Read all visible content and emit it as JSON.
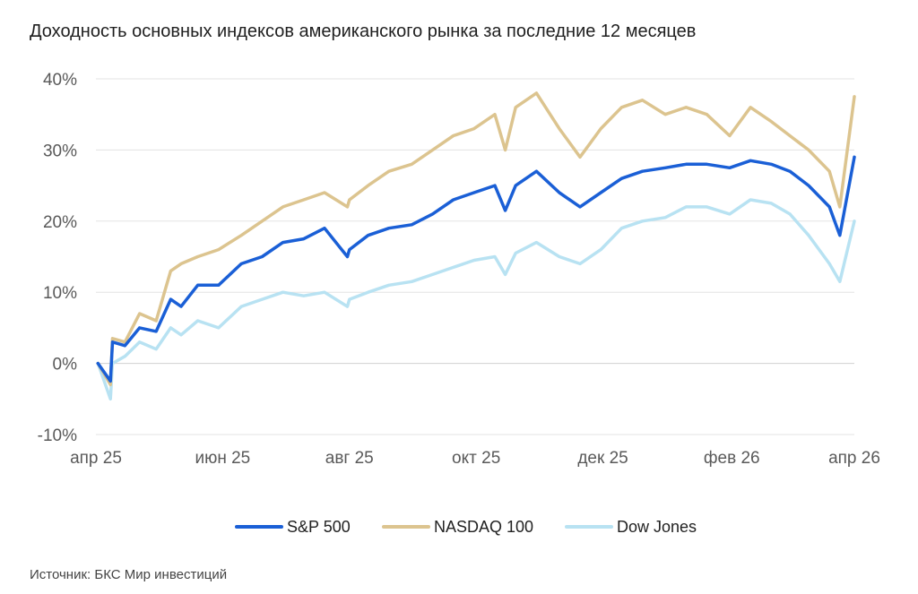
{
  "title": "Доходность основных индексов американского рынка за последние 12 месяцев",
  "source": "Источник: БКС Мир инвестиций",
  "chart_data": {
    "type": "line",
    "title": "Доходность основных индексов американского рынка за последние 12 месяцев",
    "xlabel": "",
    "ylabel": "",
    "x_ticks": [
      "апр 25",
      "июн 25",
      "авг 25",
      "окт 25",
      "дек 25",
      "фев 26",
      "апр 26"
    ],
    "y_ticks": [
      "-10%",
      "0%",
      "10%",
      "20%",
      "30%",
      "40%"
    ],
    "ylim": [
      -10,
      40
    ],
    "grid": "horizontal",
    "legend_position": "bottom",
    "series": [
      {
        "name": "S&P 500",
        "color": "#1a5fd6",
        "x": [
          "2025-04-02",
          "2025-04-08",
          "2025-04-09",
          "2025-04-15",
          "2025-04-22",
          "2025-04-30",
          "2025-05-07",
          "2025-05-12",
          "2025-05-20",
          "2025-05-30",
          "2025-06-10",
          "2025-06-20",
          "2025-06-30",
          "2025-07-10",
          "2025-07-20",
          "2025-07-31",
          "2025-08-01",
          "2025-08-10",
          "2025-08-20",
          "2025-08-31",
          "2025-09-10",
          "2025-09-20",
          "2025-09-30",
          "2025-10-10",
          "2025-10-15",
          "2025-10-20",
          "2025-10-30",
          "2025-11-10",
          "2025-11-20",
          "2025-11-30",
          "2025-12-10",
          "2025-12-20",
          "2025-12-31",
          "2026-01-10",
          "2026-01-20",
          "2026-01-31",
          "2026-02-10",
          "2026-02-20",
          "2026-03-01",
          "2026-03-10",
          "2026-03-20",
          "2026-03-25",
          "2026-04-01"
        ],
        "values": [
          0,
          -2.5,
          3,
          2.5,
          5,
          4.5,
          9,
          8,
          11,
          11,
          14,
          15,
          17,
          17.5,
          19,
          15,
          16,
          18,
          19,
          19.5,
          21,
          23,
          24,
          25,
          21.5,
          25,
          27,
          24,
          22,
          24,
          26,
          27,
          27.5,
          28,
          28,
          27.5,
          28.5,
          28,
          27,
          25,
          22,
          18,
          29
        ]
      },
      {
        "name": "NASDAQ 100",
        "color": "#dcc48f",
        "x": [
          "2025-04-02",
          "2025-04-08",
          "2025-04-09",
          "2025-04-15",
          "2025-04-22",
          "2025-04-30",
          "2025-05-07",
          "2025-05-12",
          "2025-05-20",
          "2025-05-30",
          "2025-06-10",
          "2025-06-20",
          "2025-06-30",
          "2025-07-10",
          "2025-07-20",
          "2025-07-31",
          "2025-08-01",
          "2025-08-10",
          "2025-08-20",
          "2025-08-31",
          "2025-09-10",
          "2025-09-20",
          "2025-09-30",
          "2025-10-10",
          "2025-10-15",
          "2025-10-20",
          "2025-10-30",
          "2025-11-10",
          "2025-11-20",
          "2025-11-30",
          "2025-12-10",
          "2025-12-20",
          "2025-12-31",
          "2026-01-10",
          "2026-01-20",
          "2026-01-31",
          "2026-02-10",
          "2026-02-20",
          "2026-03-01",
          "2026-03-10",
          "2026-03-20",
          "2026-03-25",
          "2026-04-01"
        ],
        "values": [
          0,
          -3,
          3.5,
          3,
          7,
          6,
          13,
          14,
          15,
          16,
          18,
          20,
          22,
          23,
          24,
          22,
          23,
          25,
          27,
          28,
          30,
          32,
          33,
          35,
          30,
          36,
          38,
          33,
          29,
          33,
          36,
          37,
          35,
          36,
          35,
          32,
          36,
          34,
          32,
          30,
          27,
          22,
          37.5
        ]
      },
      {
        "name": "Dow Jones",
        "color": "#b8e2f2",
        "x": [
          "2025-04-02",
          "2025-04-08",
          "2025-04-09",
          "2025-04-15",
          "2025-04-22",
          "2025-04-30",
          "2025-05-07",
          "2025-05-12",
          "2025-05-20",
          "2025-05-30",
          "2025-06-10",
          "2025-06-20",
          "2025-06-30",
          "2025-07-10",
          "2025-07-20",
          "2025-07-31",
          "2025-08-01",
          "2025-08-10",
          "2025-08-20",
          "2025-08-31",
          "2025-09-10",
          "2025-09-20",
          "2025-09-30",
          "2025-10-10",
          "2025-10-15",
          "2025-10-20",
          "2025-10-30",
          "2025-11-10",
          "2025-11-20",
          "2025-11-30",
          "2025-12-10",
          "2025-12-20",
          "2025-12-31",
          "2026-01-10",
          "2026-01-20",
          "2026-01-31",
          "2026-02-10",
          "2026-02-20",
          "2026-03-01",
          "2026-03-10",
          "2026-03-20",
          "2026-03-25",
          "2026-04-01"
        ],
        "values": [
          0,
          -5,
          0,
          1,
          3,
          2,
          5,
          4,
          6,
          5,
          8,
          9,
          10,
          9.5,
          10,
          8,
          9,
          10,
          11,
          11.5,
          12.5,
          13.5,
          14.5,
          15,
          12.5,
          15.5,
          17,
          15,
          14,
          16,
          19,
          20,
          20.5,
          22,
          22,
          21,
          23,
          22.5,
          21,
          18,
          14,
          11.5,
          20
        ]
      }
    ]
  }
}
